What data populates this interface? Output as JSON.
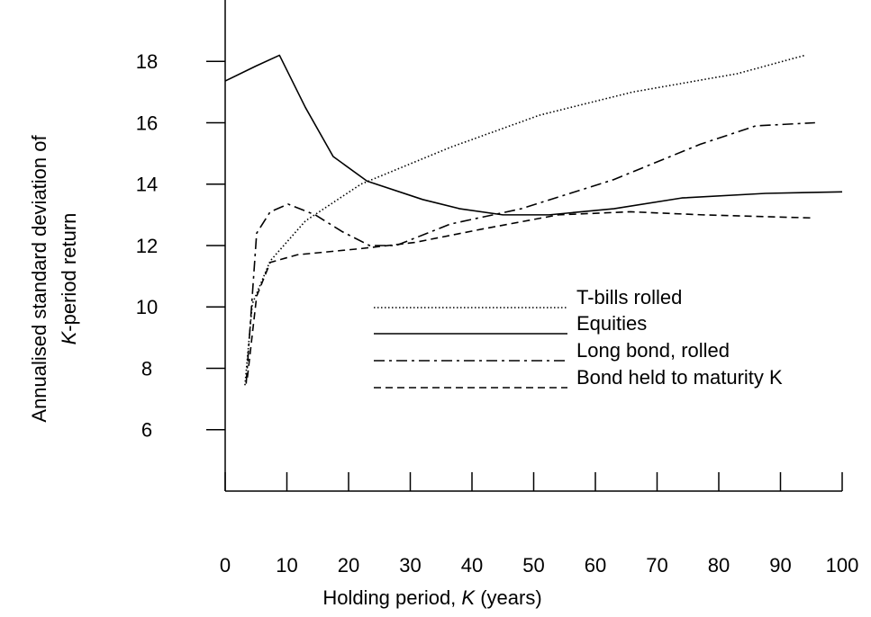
{
  "chart_data": {
    "type": "line",
    "xlabel": [
      "Holding period, ",
      "K",
      " (years)"
    ],
    "ylabel": [
      [
        "Annualised standard deviation of"
      ],
      [
        "K",
        "-period return"
      ]
    ],
    "xlim": [
      0,
      100
    ],
    "xticks": [
      0,
      10,
      20,
      30,
      40,
      50,
      60,
      70,
      80,
      90,
      100
    ],
    "ylim": [
      4,
      20
    ],
    "yticks": [
      6,
      8,
      10,
      12,
      14,
      16,
      18
    ],
    "series": [
      {
        "name": "T-bills rolled",
        "color": "#000000",
        "dash": "dotted",
        "x": [
          3.2,
          4.4,
          7.3,
          13,
          22,
          36.5,
          51,
          66,
          83,
          94
        ],
        "values": [
          7.45,
          10.1,
          11.5,
          12.8,
          14.0,
          15.2,
          16.25,
          17.0,
          17.6,
          18.2
        ]
      },
      {
        "name": "Equities",
        "color": "#000000",
        "dash": "solid",
        "x": [
          0,
          5,
          8.8,
          13,
          17.5,
          23,
          32,
          38,
          45,
          52.5,
          63,
          74,
          87.6,
          100
        ],
        "values": [
          17.36,
          17.85,
          18.2,
          16.5,
          14.9,
          14.1,
          13.5,
          13.2,
          13.0,
          13.0,
          13.2,
          13.55,
          13.7,
          13.75
        ]
      },
      {
        "name": "Long bond, rolled",
        "color": "#000000",
        "dash": "dashdot",
        "x": [
          3.4,
          5.1,
          7.3,
          10.2,
          14.6,
          19,
          23.4,
          27.7,
          36.5,
          48,
          63,
          77,
          86,
          95.6
        ],
        "values": [
          7.5,
          12.4,
          13.1,
          13.35,
          13.0,
          12.45,
          12.0,
          12.0,
          12.7,
          13.2,
          14.15,
          15.3,
          15.9,
          16.0
        ]
      },
      {
        "name": "Bond held to maturity K",
        "color": "#000000",
        "dash": "dashed",
        "x": [
          3.6,
          5.1,
          7.3,
          11.7,
          22,
          30.7,
          42,
          54,
          65.7,
          77.4,
          95
        ],
        "values": [
          7.7,
          10.35,
          11.45,
          11.7,
          11.9,
          12.1,
          12.55,
          13.0,
          13.1,
          13.0,
          12.9
        ]
      }
    ]
  }
}
